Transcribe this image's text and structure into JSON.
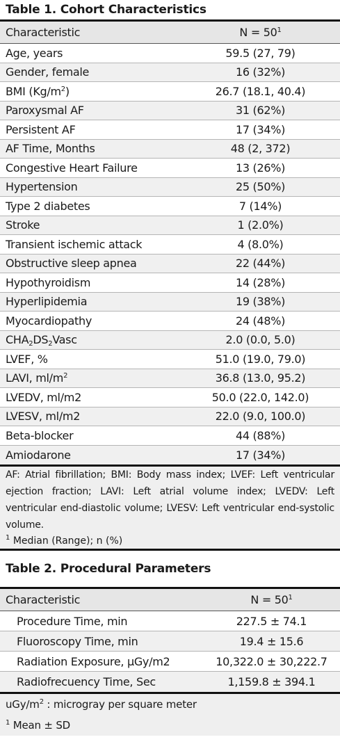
{
  "table1": {
    "title": "Table 1. Cohort Characteristics",
    "col_characteristic": "Characteristic",
    "col_n": "N = 50",
    "col_n_sup": "1",
    "rows": [
      {
        "label": "Age, years",
        "value": "59.5 (27, 79)"
      },
      {
        "label": "Gender, female",
        "value": "16 (32%)"
      },
      {
        "label": "BMI (Kg/m",
        "label_sup": "2",
        "label_tail": ")",
        "value": "26.7 (18.1, 40.4)"
      },
      {
        "label": "Paroxysmal AF",
        "value": "31 (62%)"
      },
      {
        "label": "Persistent AF",
        "value": "17 (34%)"
      },
      {
        "label": "AF Time, Months",
        "value": "48 (2, 372)"
      },
      {
        "label": "Congestive Heart Failure",
        "value": "13 (26%)"
      },
      {
        "label": "Hypertension",
        "value": "25 (50%)"
      },
      {
        "label": "Type 2 diabetes",
        "value": "7 (14%)"
      },
      {
        "label": "Stroke",
        "value": "1 (2.0%)"
      },
      {
        "label": "Transient ischemic attack",
        "value": "4 (8.0%)"
      },
      {
        "label": "Obstructive sleep apnea",
        "value": "22 (44%)"
      },
      {
        "label": "Hypothyroidism",
        "value": "14 (28%)"
      },
      {
        "label": "Hyperlipidemia",
        "value": "19 (38%)"
      },
      {
        "label": "Myocardiopathy",
        "value": "24 (48%)"
      },
      {
        "label": "CHA",
        "label_sub1": "2",
        "label_mid": "DS",
        "label_sub2": "2",
        "label_end": "Vasc",
        "value": "2.0 (0.0, 5.0)"
      },
      {
        "label": "LVEF, %",
        "value": "51.0 (19.0, 79.0)"
      },
      {
        "label": "LAVI, ml/m",
        "label_sup": "2",
        "value": "36.8 (13.0, 95.2)"
      },
      {
        "label": "LVEDV, ml/m2",
        "value": "50.0 (22.0, 142.0)"
      },
      {
        "label": "LVESV, ml/m2",
        "value": "22.0 (9.0, 100.0)"
      },
      {
        "label": "Beta-blocker",
        "value": "44 (88%)"
      },
      {
        "label": "Amiodarone",
        "value": "17 (34%)"
      }
    ],
    "footnote": "AF: Atrial fibrillation; BMI: Body mass index; LVEF: Left ventricular ejection fraction; LAVI: Left atrial volume index; LVEDV: Left ventricular end-diastolic volume; LVESV: Left ventricular end-systolic volume.",
    "note_sup": "1",
    "note_text": "Median (Range); n (%)"
  },
  "table2": {
    "title": "Table 2. Procedural Parameters",
    "col_characteristic": "Characteristic",
    "col_n": "N = 50",
    "col_n_sup": "1",
    "rows": [
      {
        "label": "Procedure Time, min",
        "value": "227.5 ± 74.1"
      },
      {
        "label": "Fluoroscopy Time, min",
        "value": "19.4 ± 15.6"
      },
      {
        "label": "Radiation Exposure, µGy/m2",
        "value": "10,322.0 ± 30,222.7"
      },
      {
        "label": "Radiofrecuency Time, Sec",
        "value": "1,159.8 ± 394.1"
      }
    ],
    "footnote_a": "uGy/m",
    "footnote_sup": "2",
    "footnote_b": " : microgray per square meter",
    "note_sup": "1",
    "note_text": "Mean ± SD"
  }
}
